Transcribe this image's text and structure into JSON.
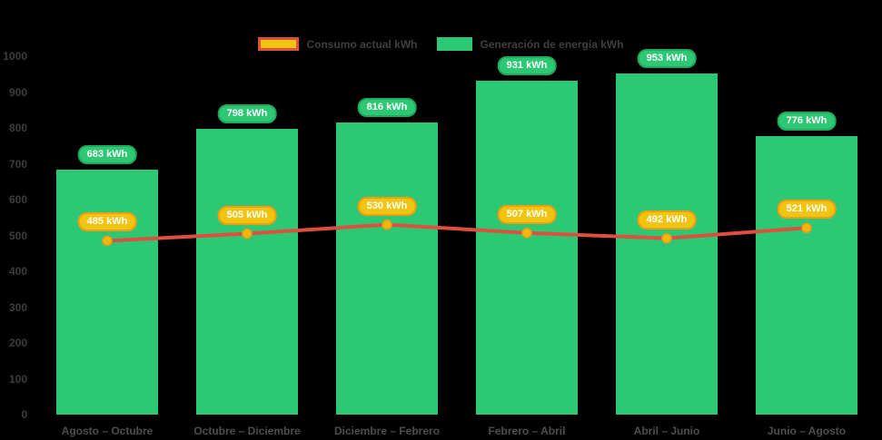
{
  "app": {
    "background": "#000000"
  },
  "legend": {
    "items": [
      {
        "label": "Consumo actual kWh"
      },
      {
        "label": "Generación de energía kWh"
      }
    ]
  },
  "chart_data": {
    "type": "combo-bar-line",
    "title": "",
    "xlabel": "",
    "ylabel": "",
    "categories": [
      "Agosto – Octubre",
      "Octubre – Diciembre",
      "Diciembre – Febrero",
      "Febrero – Abril",
      "Abril – Junio",
      "Junio – Agosto"
    ],
    "series": [
      {
        "name": "Consumo actual kWh",
        "type": "line",
        "values": [
          485,
          505,
          530,
          507,
          492,
          521
        ],
        "labels": [
          "485 kWh",
          "505 kWh",
          "530 kWh",
          "507 kWh",
          "492 kWh",
          "521 kWh"
        ],
        "line_color": "#df4f3f",
        "marker_fill": "#f5b70e",
        "marker_stroke": "#ef9b1a",
        "label_bg": "#f1c40f",
        "label_border": "#f39c12",
        "label_text_color": "#ffffff"
      },
      {
        "name": "Generación de energía kWh",
        "type": "bar",
        "values": [
          683,
          798,
          816,
          931,
          953,
          776
        ],
        "labels": [
          "683 kWh",
          "798 kWh",
          "816 kWh",
          "931 kWh",
          "953 kWh",
          "776 kWh"
        ],
        "bar_color": "#2dc873",
        "label_bg": "#2dc873",
        "label_border": "#1fa95c",
        "label_text_color": "#ffffff"
      }
    ],
    "ylim": [
      0,
      1000
    ],
    "y_tick_labels": [
      "0",
      "100",
      "200",
      "300",
      "400",
      "500",
      "600",
      "700",
      "800",
      "900",
      "1000"
    ],
    "value_suffix": " kWh",
    "legend_position": "top-center",
    "grid": false,
    "background": "#000000",
    "axis_text_color": "#3c3c3c"
  }
}
